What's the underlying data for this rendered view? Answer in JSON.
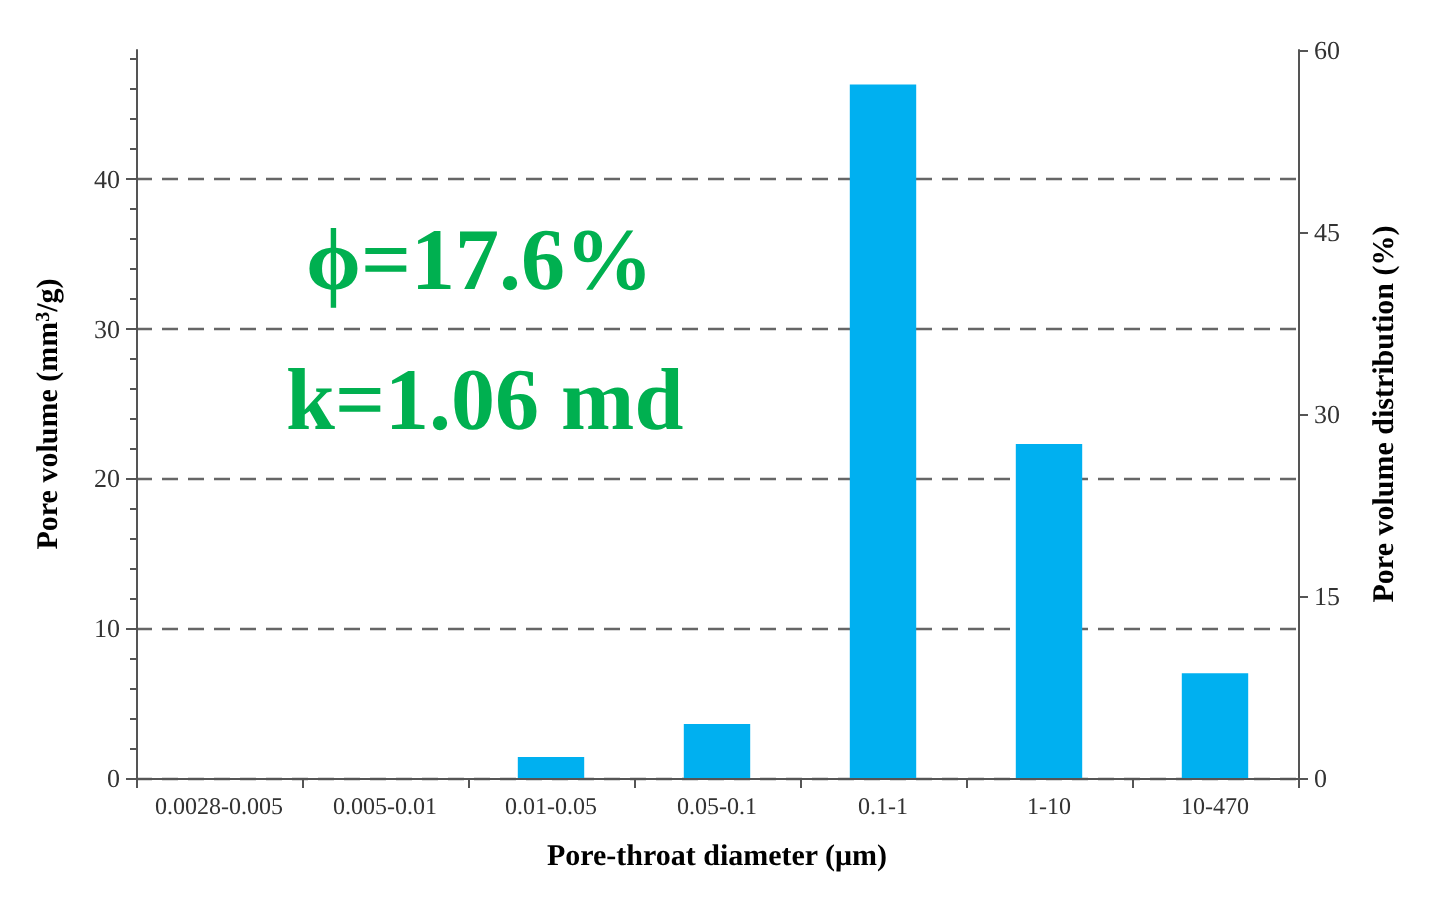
{
  "chart_data": {
    "type": "bar",
    "xlabel": "Pore-throat diameter (μm)",
    "ylabel": "Pore volume (mm$^{3}$/g)",
    "y2label": "Pore volume distribution (%)",
    "categories": [
      "0.0028-0.005",
      "0.005-0.01",
      "0.01-0.05",
      "0.05-0.1",
      "0.1-1",
      "1-10",
      "10-470"
    ],
    "series": [
      {
        "color": "#00b0f0",
        "values": [
          0,
          0,
          1.4,
          3.6,
          46.3,
          22.3,
          7.0
        ]
      }
    ],
    "ylim": [
      0,
      48.6
    ],
    "yticks": [
      0,
      10,
      20,
      30,
      40
    ],
    "y2lim": [
      0,
      60
    ],
    "y2ticks": [
      0,
      15,
      30,
      45,
      60
    ],
    "grid": "y",
    "annotations": [
      "ϕ=17.6%",
      "k=1.06 md"
    ]
  }
}
